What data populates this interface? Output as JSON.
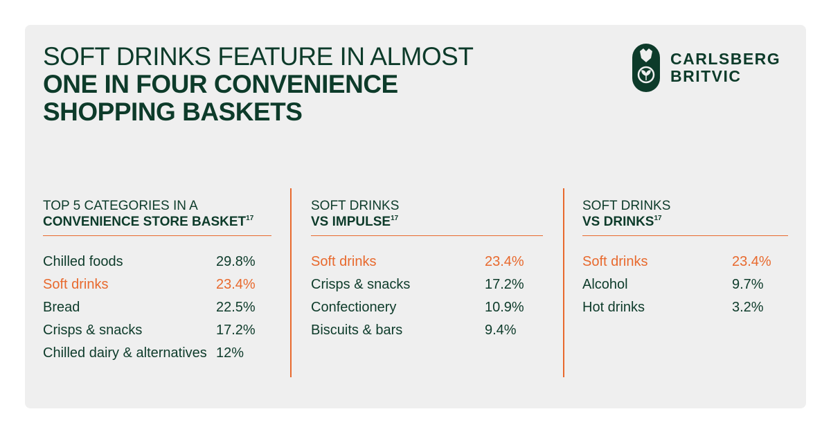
{
  "header": {
    "title_light": "SOFT DRINKS FEATURE IN ALMOST",
    "title_bold": "ONE IN FOUR CONVENIENCE SHOPPING BASKETS",
    "logo": [
      "CARLSBERG",
      "BRITVIC"
    ]
  },
  "columns": [
    {
      "heading_light": "TOP 5 CATEGORIES IN A",
      "heading_bold": "CONVENIENCE STORE BASKET",
      "footnote": "17",
      "rows": [
        {
          "label": "Chilled foods",
          "value": "29.8%"
        },
        {
          "label": "Soft drinks",
          "value": "23.4%",
          "highlight": true
        },
        {
          "label": "Bread",
          "value": "22.5%"
        },
        {
          "label": "Crisps & snacks",
          "value": "17.2%"
        },
        {
          "label": "Chilled dairy & alternatives",
          "value": "12%"
        }
      ]
    },
    {
      "heading_light": "SOFT DRINKS",
      "heading_bold": "VS IMPULSE",
      "footnote": "17",
      "rows": [
        {
          "label": "Soft drinks",
          "value": "23.4%",
          "highlight": true
        },
        {
          "label": "Crisps & snacks",
          "value": "17.2%"
        },
        {
          "label": "Confectionery",
          "value": "10.9%"
        },
        {
          "label": "Biscuits & bars",
          "value": "9.4%"
        }
      ]
    },
    {
      "heading_light": "SOFT DRINKS",
      "heading_bold": "VS DRINKS",
      "footnote": "17",
      "rows": [
        {
          "label": "Soft drinks",
          "value": "23.4%",
          "highlight": true
        },
        {
          "label": "Alcohol",
          "value": "9.7%"
        },
        {
          "label": "Hot drinks",
          "value": "3.2%"
        }
      ]
    }
  ]
}
